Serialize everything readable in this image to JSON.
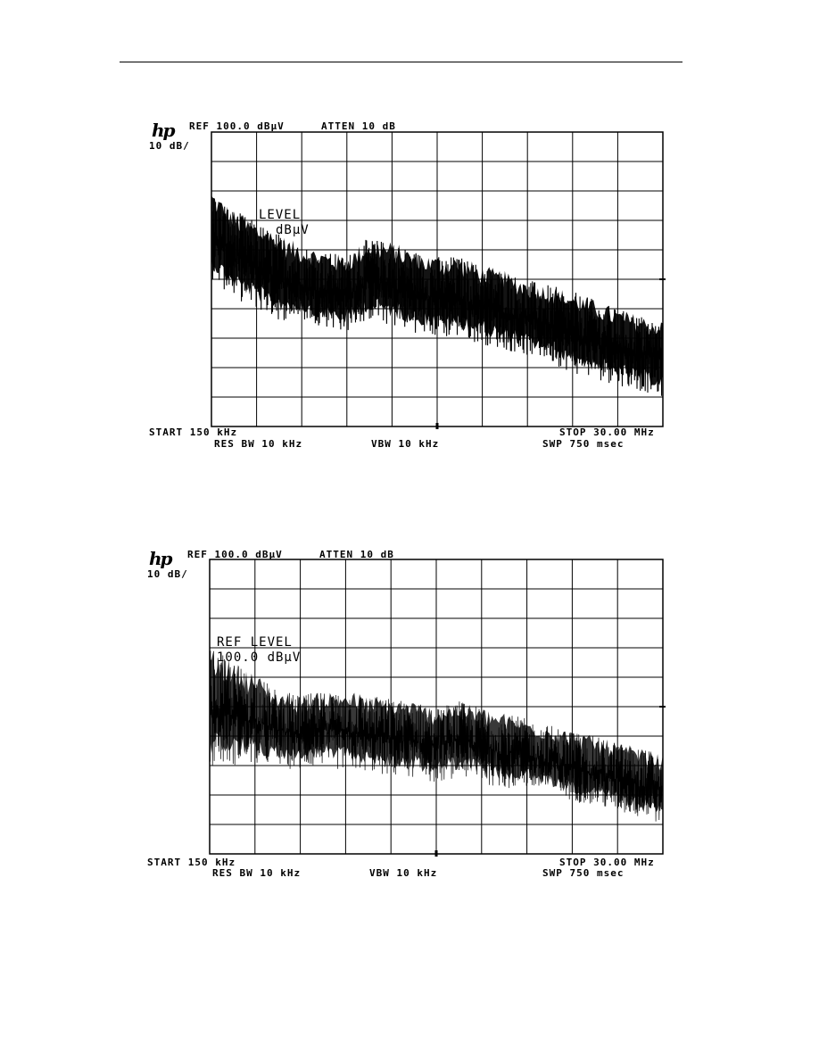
{
  "chart_data": [
    {
      "type": "line",
      "brand_mark": "hp",
      "ref_label": "REF 100.0 dBμV",
      "atten_label": "ATTEN 10 dB",
      "scale_label": "10 dB/",
      "ref_level_line1": "LEVEL",
      "ref_level_line2": "dBμV",
      "start_label": "START 150 kHz",
      "stop_label": "STOP 30.00 MHz",
      "rbw_label": "RES BW 10 kHz",
      "vbw_label": "VBW 10 kHz",
      "sweep_label": "SWP 750 msec",
      "xlim_mhz": [
        0.15,
        30.0
      ],
      "ylim_db": [
        0,
        100
      ],
      "grid": true,
      "grid_divisions": [
        10,
        10
      ],
      "trace_color": "#000000",
      "series": [
        {
          "x_mhz": [
            0.15,
            1.5,
            3.0,
            4.5,
            6.0,
            7.5,
            9.0,
            10.5,
            12.0,
            13.5,
            15.0,
            16.5,
            18.0,
            19.5,
            21.0,
            22.5,
            24.0,
            25.5,
            27.0,
            28.5,
            30.0
          ],
          "upper_db": [
            81,
            74,
            70,
            66,
            62,
            60,
            58,
            64,
            63,
            60,
            58,
            58,
            55,
            53,
            50,
            48,
            46,
            43,
            40,
            38,
            36
          ],
          "lower_db": [
            50,
            44,
            40,
            36,
            36,
            34,
            32,
            36,
            34,
            32,
            30,
            30,
            28,
            26,
            24,
            22,
            18,
            16,
            14,
            12,
            10
          ]
        }
      ]
    },
    {
      "type": "line",
      "brand_mark": "hp",
      "ref_label": "REF 100.0 dBμV",
      "atten_label": "ATTEN 10 dB",
      "scale_label": "10 dB/",
      "ref_level_line1": "REF LEVEL",
      "ref_level_line2": "100.0 dBμV",
      "start_label": "START 150 kHz",
      "stop_label": "STOP 30.00 MHz",
      "rbw_label": "RES BW 10 kHz",
      "vbw_label": "VBW 10 kHz",
      "sweep_label": "SWP 750 msec",
      "xlim_mhz": [
        0.15,
        30.0
      ],
      "ylim_db": [
        0,
        100
      ],
      "grid": true,
      "grid_divisions": [
        10,
        10
      ],
      "trace_color": "#000000",
      "series": [
        {
          "x_mhz": [
            0.15,
            1.5,
            3.0,
            4.5,
            6.0,
            7.5,
            9.0,
            10.5,
            12.0,
            13.5,
            15.0,
            16.5,
            18.0,
            19.5,
            21.0,
            22.5,
            24.0,
            25.5,
            27.0,
            28.5,
            30.0
          ],
          "upper_db": [
            70,
            66,
            62,
            56,
            54,
            55,
            56,
            54,
            53,
            52,
            50,
            52,
            50,
            48,
            46,
            44,
            42,
            40,
            38,
            36,
            34
          ],
          "lower_db": [
            30,
            30,
            30,
            30,
            28,
            30,
            28,
            28,
            26,
            26,
            24,
            26,
            24,
            22,
            22,
            20,
            18,
            16,
            14,
            12,
            10
          ]
        }
      ]
    }
  ]
}
